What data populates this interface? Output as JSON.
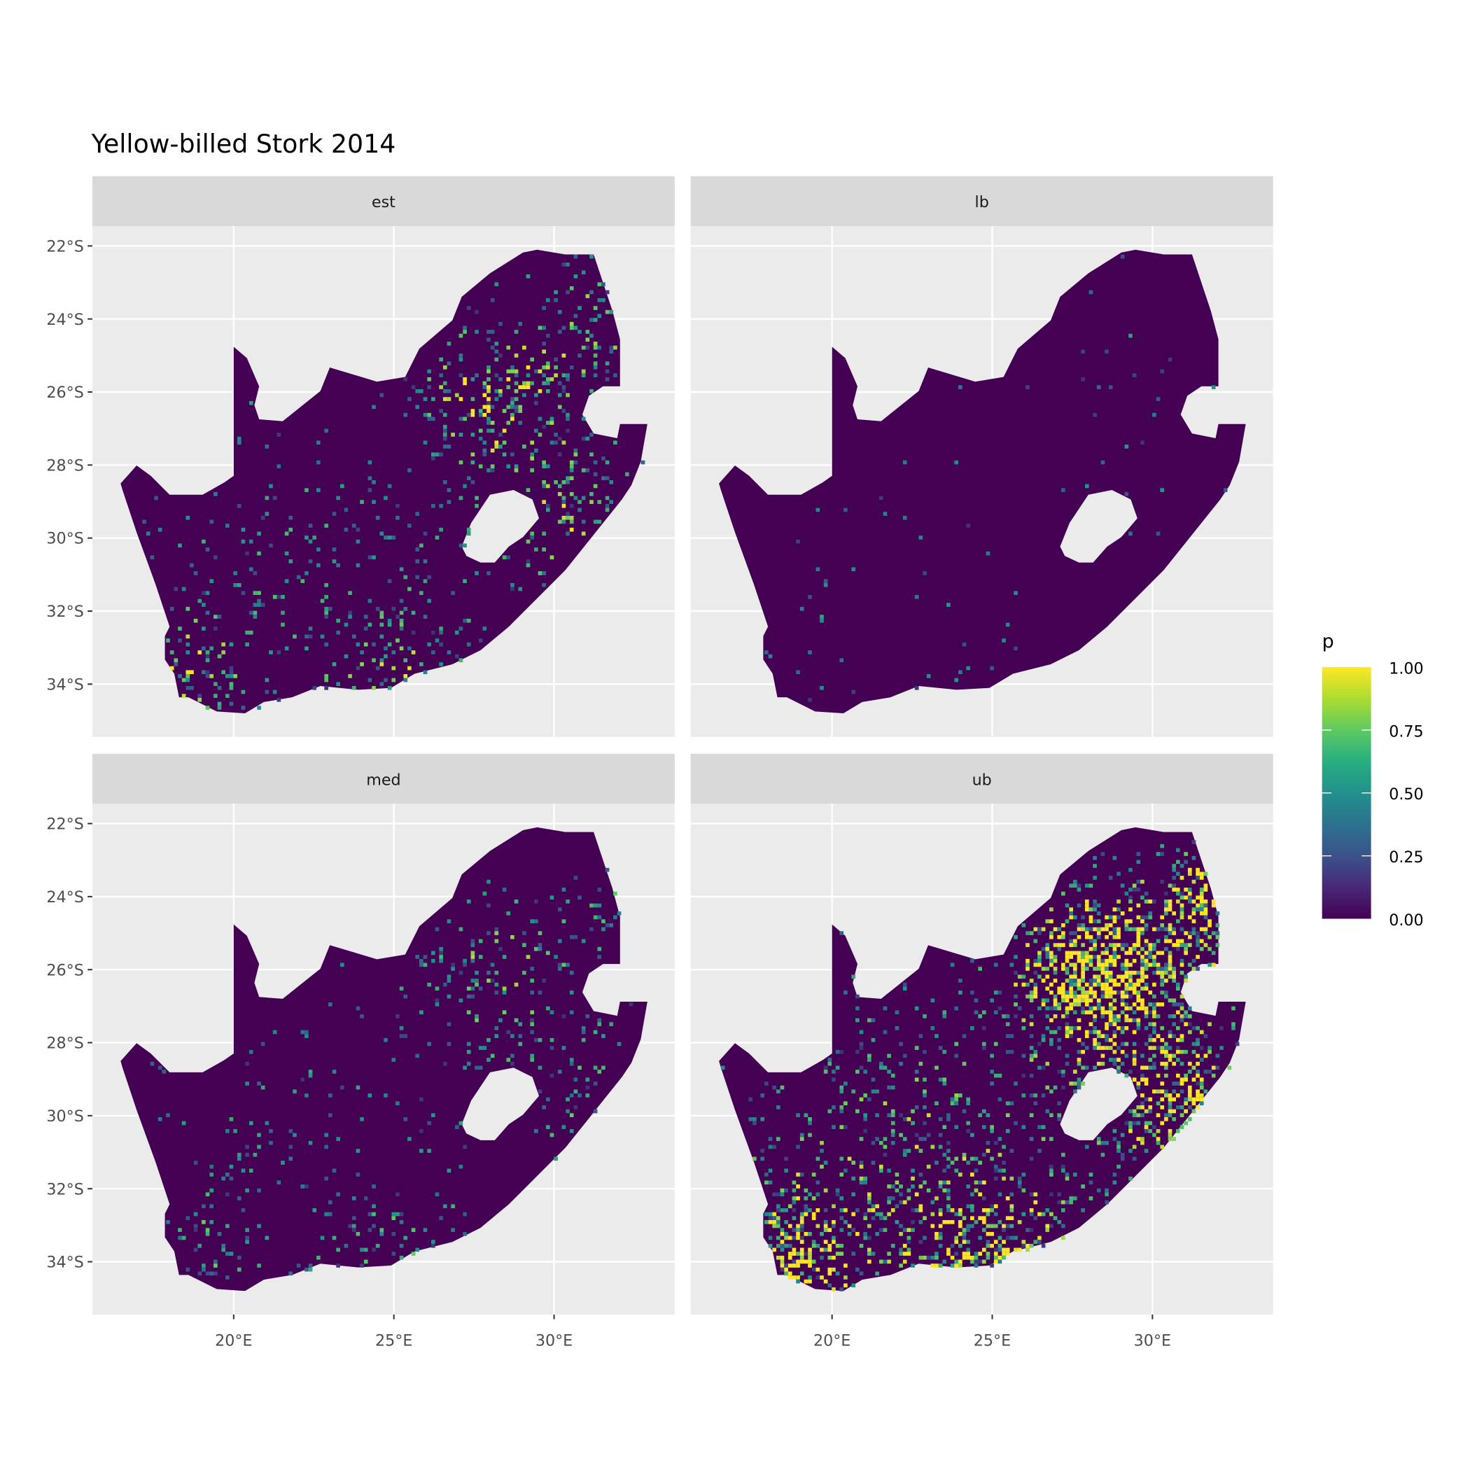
{
  "chart_data": {
    "type": "heatmap",
    "title": "Yellow-billed Stork 2014",
    "xlabel": "",
    "ylabel": "",
    "facets": [
      "est",
      "lb",
      "med",
      "ub"
    ],
    "x_ticks": [
      "20°E",
      "25°E",
      "30°E"
    ],
    "x_tick_values": [
      20,
      25,
      30
    ],
    "y_ticks": [
      "22°S",
      "24°S",
      "26°S",
      "28°S",
      "30°S",
      "32°S",
      "34°S"
    ],
    "y_tick_values": [
      -22,
      -24,
      -26,
      -28,
      -30,
      -32,
      -34
    ],
    "xlim": [
      15.6,
      33.8
    ],
    "ylim": [
      -35.45,
      -21.45
    ],
    "grid": true,
    "region": "South Africa (excluding Lesotho)",
    "legend": {
      "title": "p",
      "placement": "right",
      "labels": [
        "1.00",
        "0.75",
        "0.50",
        "0.25",
        "0.00"
      ],
      "values": [
        1.0,
        0.75,
        0.5,
        0.25,
        0.0
      ],
      "range": [
        0,
        1
      ],
      "colormap": "viridis",
      "colors": [
        "#440154",
        "#3b528b",
        "#21918c",
        "#5ec962",
        "#fde725"
      ]
    },
    "background_value": 0.0
  },
  "colors": {
    "panel_bg": "#ebebeb",
    "strip_bg": "#d9d9d9",
    "grid": "#ffffff",
    "low": "#440154",
    "high": "#fde725"
  }
}
